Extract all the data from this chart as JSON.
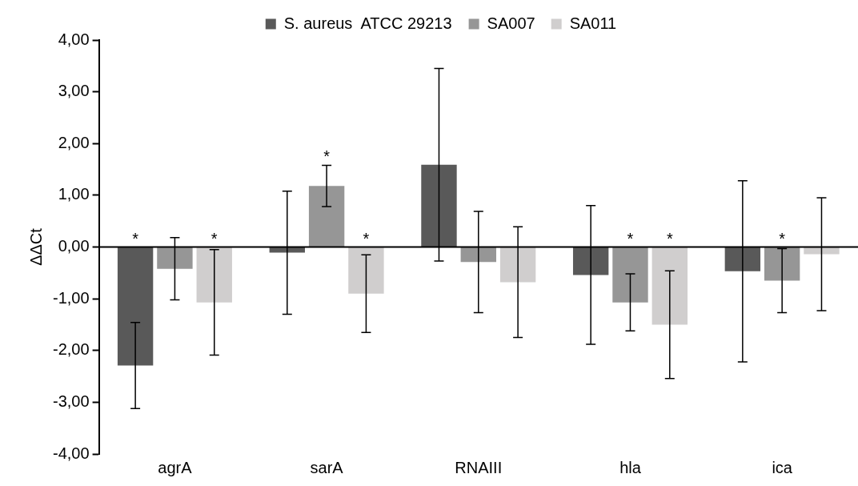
{
  "chart_data": {
    "type": "bar",
    "ylabel": "ΔΔCt",
    "categories": [
      "agrA",
      "sarA",
      "RNAIII",
      "hla",
      "ica"
    ],
    "series": [
      {
        "name": "S. aureus  ATCC 29213",
        "color": "#595959",
        "values": [
          -2.29,
          -0.11,
          1.59,
          -0.54,
          -0.47
        ],
        "errors": [
          0.83,
          1.19,
          1.86,
          1.34,
          1.75
        ],
        "value_labels": [
          "*",
          null,
          null,
          null,
          null
        ]
      },
      {
        "name": "SA007",
        "color": "#969696",
        "values": [
          -0.42,
          1.18,
          -0.29,
          -1.07,
          -0.65
        ],
        "errors": [
          0.6,
          0.4,
          0.98,
          0.55,
          0.62
        ],
        "value_labels": [
          null,
          "*",
          null,
          "*",
          "*"
        ]
      },
      {
        "name": "SA011",
        "color": "#d0cece",
        "values": [
          -1.07,
          -0.9,
          -0.68,
          -1.5,
          -0.14
        ],
        "errors": [
          1.02,
          0.75,
          1.07,
          1.04,
          1.09
        ],
        "value_labels": [
          "*",
          "*",
          null,
          "*",
          null
        ]
      }
    ],
    "ylim": [
      -4,
      4
    ],
    "yticks": [
      {
        "value": 4,
        "label": "4,00"
      },
      {
        "value": 3,
        "label": "3,00"
      },
      {
        "value": 2,
        "label": "2,00"
      },
      {
        "value": 1,
        "label": "1,00"
      },
      {
        "value": 0,
        "label": "0,00"
      },
      {
        "value": -1,
        "label": "-1,00"
      },
      {
        "value": -2,
        "label": "-2,00"
      },
      {
        "value": -3,
        "label": "-3,00"
      },
      {
        "value": -4,
        "label": "-4,00"
      }
    ],
    "ref_lines": [
      {
        "axis": "y",
        "value": 0,
        "color": "#000000"
      }
    ],
    "grid": false,
    "legend": "top"
  }
}
